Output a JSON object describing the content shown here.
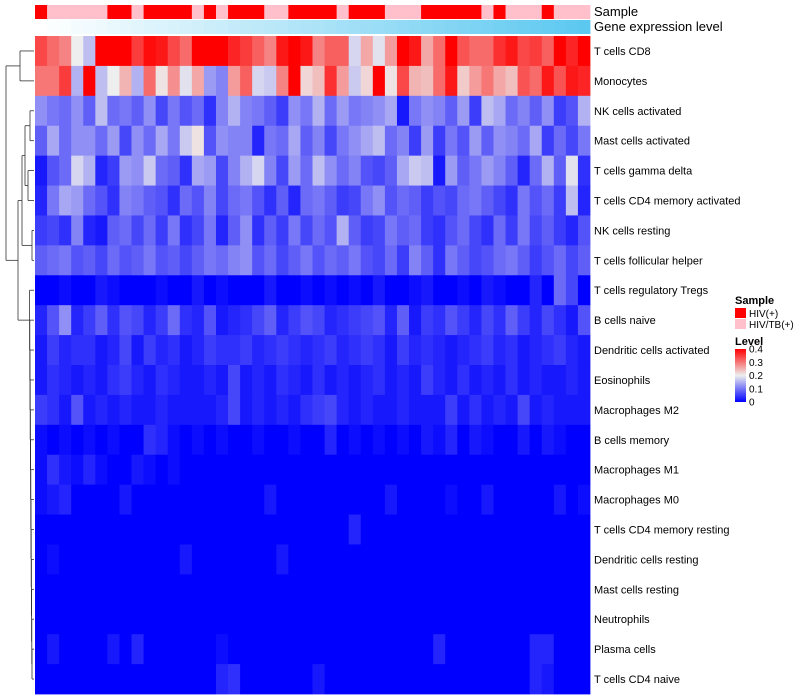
{
  "chart_data": {
    "type": "heatmap",
    "title": "",
    "annotation_tracks": [
      {
        "label": "Sample"
      },
      {
        "label": "Gene expression level"
      }
    ],
    "rows": [
      "T cells CD8",
      "Monocytes",
      "NK cells activated",
      "Mast cells activated",
      "T cells gamma delta",
      "T cells CD4 memory activated",
      "NK cells resting",
      "T cells follicular helper",
      "T cells regulatory  Tregs",
      "B cells naive",
      "Dendritic cells activated",
      "Eosinophils",
      "Macrophages M2",
      "B cells memory",
      "Macrophages M1",
      "Macrophages M0",
      "T cells CD4 memory resting",
      "Dendritic cells resting",
      "Mast cells resting",
      "Neutrophils",
      "Plasma cells",
      "T cells CD4 naive"
    ],
    "n_columns": 46,
    "sample_groups": [
      "HIV(+)",
      "HIV/TB(+)"
    ],
    "sample_colors": {
      "HIV(+)": "#ff0000",
      "HIV/TB(+)": "#ffc0cb"
    },
    "sample_assignment": [
      0,
      1,
      1,
      1,
      1,
      1,
      0,
      0,
      1,
      0,
      0,
      0,
      0,
      1,
      0,
      1,
      0,
      0,
      0,
      1,
      1,
      0,
      0,
      0,
      0,
      1,
      0,
      0,
      0,
      1,
      1,
      1,
      0,
      0,
      0,
      0,
      0,
      1,
      0,
      1,
      1,
      1,
      0,
      1,
      1,
      1
    ],
    "expression_colors": [
      "#ffffff",
      "#5cc8f0"
    ],
    "legend": {
      "sample_title": "Sample",
      "level_title": "Level",
      "ticks": [
        0.4,
        0.3,
        0.2,
        0.1,
        0
      ],
      "tick_labels": [
        "0.4",
        "0.3",
        "0.2",
        "0.1",
        "0"
      ],
      "position": "right"
    },
    "color_scale": {
      "min": 0,
      "mid": 0.2,
      "max": 0.4,
      "low": "#0000ff",
      "midcolor": "#eeeeee",
      "high": "#ff0000"
    },
    "values": [
      [
        0.34,
        0.31,
        0.29,
        0.2,
        0.16,
        0.4,
        0.4,
        0.4,
        0.35,
        0.39,
        0.38,
        0.34,
        0.31,
        0.4,
        0.4,
        0.4,
        0.37,
        0.35,
        0.32,
        0.29,
        0.38,
        0.4,
        0.38,
        0.29,
        0.32,
        0.32,
        0.18,
        0.26,
        0.19,
        0.27,
        0.4,
        0.38,
        0.26,
        0.31,
        0.4,
        0.33,
        0.31,
        0.31,
        0.36,
        0.38,
        0.34,
        0.35,
        0.32,
        0.4,
        0.37,
        0.4
      ],
      [
        0.3,
        0.3,
        0.35,
        0.15,
        0.4,
        0.16,
        0.2,
        0.25,
        0.15,
        0.31,
        0.21,
        0.28,
        0.19,
        0.26,
        0.13,
        0.11,
        0.27,
        0.32,
        0.18,
        0.17,
        0.29,
        0.4,
        0.22,
        0.24,
        0.36,
        0.27,
        0.17,
        0.22,
        0.4,
        0.21,
        0.34,
        0.25,
        0.24,
        0.31,
        0.38,
        0.23,
        0.27,
        0.3,
        0.26,
        0.24,
        0.33,
        0.31,
        0.38,
        0.33,
        0.38,
        0.37
      ],
      [
        0.12,
        0.1,
        0.09,
        0.12,
        0.08,
        0.16,
        0.09,
        0.1,
        0.08,
        0.12,
        0.06,
        0.1,
        0.07,
        0.09,
        0.04,
        0.11,
        0.15,
        0.11,
        0.1,
        0.08,
        0.05,
        0.12,
        0.1,
        0.15,
        0.09,
        0.13,
        0.1,
        0.11,
        0.12,
        0.14,
        0.02,
        0.1,
        0.12,
        0.11,
        0.08,
        0.13,
        0.05,
        0.16,
        0.14,
        0.09,
        0.11,
        0.08,
        0.12,
        0.05,
        0.07,
        0.15
      ],
      [
        0.08,
        0.14,
        0.09,
        0.12,
        0.12,
        0.09,
        0.13,
        0.06,
        0.12,
        0.09,
        0.14,
        0.1,
        0.17,
        0.21,
        0.07,
        0.12,
        0.11,
        0.11,
        0.03,
        0.1,
        0.09,
        0.14,
        0.08,
        0.11,
        0.06,
        0.1,
        0.12,
        0.14,
        0.16,
        0.09,
        0.11,
        0.05,
        0.13,
        0.05,
        0.1,
        0.07,
        0.13,
        0.08,
        0.12,
        0.11,
        0.09,
        0.14,
        0.05,
        0.09,
        0.06,
        0.1
      ],
      [
        0.02,
        0.07,
        0.09,
        0.18,
        0.15,
        0.03,
        0.05,
        0.13,
        0.12,
        0.17,
        0.09,
        0.08,
        0.04,
        0.14,
        0.13,
        0.06,
        0.11,
        0.15,
        0.18,
        0.11,
        0.06,
        0.13,
        0.09,
        0.16,
        0.12,
        0.09,
        0.11,
        0.07,
        0.06,
        0.08,
        0.14,
        0.17,
        0.16,
        0.02,
        0.13,
        0.08,
        0.1,
        0.13,
        0.11,
        0.08,
        0.03,
        0.09,
        0.15,
        0.08,
        0.19,
        0.04
      ],
      [
        0.03,
        0.1,
        0.14,
        0.13,
        0.09,
        0.07,
        0.04,
        0.11,
        0.1,
        0.08,
        0.07,
        0.04,
        0.09,
        0.07,
        0.11,
        0.06,
        0.09,
        0.1,
        0.07,
        0.04,
        0.08,
        0.03,
        0.09,
        0.1,
        0.08,
        0.05,
        0.06,
        0.1,
        0.12,
        0.07,
        0.09,
        0.08,
        0.05,
        0.07,
        0.06,
        0.09,
        0.1,
        0.08,
        0.06,
        0.04,
        0.1,
        0.07,
        0.09,
        0.05,
        0.16,
        0.03
      ],
      [
        0.05,
        0.06,
        0.04,
        0.11,
        0.03,
        0.02,
        0.08,
        0.09,
        0.06,
        0.09,
        0.05,
        0.1,
        0.04,
        0.06,
        0.1,
        0.03,
        0.08,
        0.12,
        0.04,
        0.08,
        0.05,
        0.1,
        0.06,
        0.09,
        0.07,
        0.15,
        0.08,
        0.05,
        0.06,
        0.1,
        0.08,
        0.09,
        0.05,
        0.04,
        0.07,
        0.09,
        0.06,
        0.04,
        0.09,
        0.05,
        0.1,
        0.06,
        0.08,
        0.05,
        0.03,
        0.07
      ],
      [
        0.08,
        0.09,
        0.1,
        0.07,
        0.08,
        0.06,
        0.09,
        0.07,
        0.08,
        0.1,
        0.07,
        0.08,
        0.06,
        0.08,
        0.1,
        0.09,
        0.11,
        0.12,
        0.07,
        0.09,
        0.06,
        0.08,
        0.1,
        0.07,
        0.09,
        0.08,
        0.1,
        0.07,
        0.06,
        0.09,
        0.05,
        0.11,
        0.08,
        0.04,
        0.1,
        0.08,
        0.06,
        0.07,
        0.09,
        0.1,
        0.08,
        0.05,
        0.07,
        0.09,
        0.06,
        0.08
      ],
      [
        0.0,
        0.0,
        0.01,
        0.0,
        0.0,
        0.02,
        0.01,
        0.0,
        0.0,
        0.0,
        0.01,
        0.0,
        0.0,
        0.02,
        0.0,
        0.01,
        0.0,
        0.0,
        0.0,
        0.02,
        0.0,
        0.0,
        0.01,
        0.0,
        0.01,
        0.0,
        0.01,
        0.0,
        0.02,
        0.0,
        0.0,
        0.01,
        0.02,
        0.0,
        0.0,
        0.01,
        0.0,
        0.02,
        0.01,
        0.0,
        0.0,
        0.03,
        0.0,
        0.09,
        0.06,
        0.0
      ],
      [
        0.03,
        0.07,
        0.12,
        0.03,
        0.05,
        0.08,
        0.04,
        0.07,
        0.06,
        0.03,
        0.05,
        0.09,
        0.04,
        0.03,
        0.07,
        0.02,
        0.03,
        0.04,
        0.06,
        0.08,
        0.03,
        0.05,
        0.07,
        0.06,
        0.03,
        0.04,
        0.05,
        0.06,
        0.07,
        0.03,
        0.08,
        0.02,
        0.05,
        0.04,
        0.07,
        0.05,
        0.03,
        0.06,
        0.04,
        0.08,
        0.05,
        0.03,
        0.06,
        0.04,
        0.02,
        0.07
      ],
      [
        0.02,
        0.05,
        0.03,
        0.04,
        0.04,
        0.02,
        0.03,
        0.06,
        0.02,
        0.05,
        0.03,
        0.04,
        0.02,
        0.03,
        0.05,
        0.04,
        0.04,
        0.05,
        0.03,
        0.04,
        0.05,
        0.04,
        0.03,
        0.04,
        0.05,
        0.03,
        0.04,
        0.05,
        0.04,
        0.02,
        0.05,
        0.03,
        0.04,
        0.03,
        0.02,
        0.03,
        0.04,
        0.05,
        0.03,
        0.04,
        0.02,
        0.03,
        0.04,
        0.05,
        0.03,
        0.02
      ],
      [
        0.02,
        0.04,
        0.03,
        0.02,
        0.03,
        0.02,
        0.04,
        0.05,
        0.03,
        0.02,
        0.04,
        0.03,
        0.02,
        0.02,
        0.03,
        0.02,
        0.06,
        0.02,
        0.03,
        0.02,
        0.04,
        0.03,
        0.02,
        0.04,
        0.02,
        0.03,
        0.02,
        0.03,
        0.04,
        0.02,
        0.03,
        0.02,
        0.05,
        0.03,
        0.02,
        0.04,
        0.02,
        0.03,
        0.02,
        0.04,
        0.02,
        0.03,
        0.02,
        0.02,
        0.03,
        0.02
      ],
      [
        0.05,
        0.04,
        0.02,
        0.07,
        0.02,
        0.03,
        0.02,
        0.03,
        0.02,
        0.02,
        0.03,
        0.02,
        0.02,
        0.02,
        0.02,
        0.03,
        0.06,
        0.02,
        0.03,
        0.02,
        0.03,
        0.02,
        0.04,
        0.05,
        0.06,
        0.03,
        0.02,
        0.03,
        0.02,
        0.02,
        0.03,
        0.02,
        0.02,
        0.02,
        0.05,
        0.02,
        0.04,
        0.02,
        0.03,
        0.02,
        0.06,
        0.02,
        0.03,
        0.02,
        0.02,
        0.02
      ],
      [
        0.01,
        0.0,
        0.01,
        0.0,
        0.01,
        0.0,
        0.01,
        0.0,
        0.0,
        0.04,
        0.03,
        0.01,
        0.0,
        0.01,
        0.0,
        0.01,
        0.0,
        0.0,
        0.01,
        0.0,
        0.0,
        0.01,
        0.0,
        0.0,
        0.03,
        0.0,
        0.01,
        0.0,
        0.01,
        0.0,
        0.01,
        0.0,
        0.02,
        0.01,
        0.03,
        0.0,
        0.02,
        0.01,
        0.0,
        0.0,
        0.02,
        0.0,
        0.02,
        0.01,
        0.0,
        0.0
      ],
      [
        0.01,
        0.04,
        0.02,
        0.01,
        0.03,
        0.01,
        0.0,
        0.0,
        0.02,
        0.01,
        0.0,
        0.01,
        0.0,
        0.0,
        0.0,
        0.0,
        0.0,
        0.0,
        0.0,
        0.0,
        0.0,
        0.0,
        0.0,
        0.0,
        0.0,
        0.0,
        0.0,
        0.0,
        0.0,
        0.0,
        0.0,
        0.0,
        0.0,
        0.0,
        0.0,
        0.0,
        0.0,
        0.0,
        0.0,
        0.0,
        0.0,
        0.0,
        0.0,
        0.0,
        0.0,
        0.0
      ],
      [
        0.01,
        0.02,
        0.03,
        0.0,
        0.0,
        0.0,
        0.0,
        0.02,
        0.0,
        0.0,
        0.0,
        0.0,
        0.0,
        0.0,
        0.0,
        0.0,
        0.0,
        0.0,
        0.0,
        0.02,
        0.0,
        0.0,
        0.0,
        0.0,
        0.0,
        0.0,
        0.0,
        0.0,
        0.0,
        0.02,
        0.0,
        0.0,
        0.0,
        0.0,
        0.01,
        0.0,
        0.0,
        0.02,
        0.0,
        0.0,
        0.0,
        0.0,
        0.0,
        0.02,
        0.0,
        0.01
      ],
      [
        0.0,
        0.0,
        0.0,
        0.0,
        0.0,
        0.0,
        0.0,
        0.0,
        0.0,
        0.0,
        0.0,
        0.0,
        0.0,
        0.0,
        0.0,
        0.0,
        0.0,
        0.0,
        0.0,
        0.0,
        0.0,
        0.0,
        0.0,
        0.0,
        0.0,
        0.0,
        0.03,
        0.0,
        0.0,
        0.0,
        0.0,
        0.0,
        0.0,
        0.0,
        0.0,
        0.0,
        0.0,
        0.0,
        0.0,
        0.0,
        0.0,
        0.0,
        0.0,
        0.0,
        0.0,
        0.0
      ],
      [
        0.0,
        0.01,
        0.0,
        0.0,
        0.0,
        0.0,
        0.0,
        0.0,
        0.0,
        0.0,
        0.0,
        0.0,
        0.02,
        0.0,
        0.0,
        0.0,
        0.0,
        0.0,
        0.0,
        0.0,
        0.02,
        0.0,
        0.0,
        0.0,
        0.0,
        0.0,
        0.0,
        0.0,
        0.0,
        0.0,
        0.0,
        0.0,
        0.0,
        0.0,
        0.0,
        0.0,
        0.0,
        0.0,
        0.0,
        0.0,
        0.0,
        0.0,
        0.0,
        0.0,
        0.0,
        0.0
      ],
      [
        0.0,
        0.0,
        0.0,
        0.0,
        0.0,
        0.0,
        0.0,
        0.0,
        0.0,
        0.0,
        0.0,
        0.0,
        0.0,
        0.0,
        0.0,
        0.0,
        0.0,
        0.0,
        0.0,
        0.0,
        0.0,
        0.0,
        0.0,
        0.0,
        0.0,
        0.0,
        0.0,
        0.0,
        0.0,
        0.0,
        0.0,
        0.0,
        0.0,
        0.0,
        0.0,
        0.0,
        0.0,
        0.0,
        0.0,
        0.0,
        0.0,
        0.0,
        0.0,
        0.0,
        0.0,
        0.0
      ],
      [
        0.0,
        0.0,
        0.0,
        0.0,
        0.0,
        0.0,
        0.0,
        0.0,
        0.0,
        0.0,
        0.0,
        0.0,
        0.0,
        0.0,
        0.0,
        0.0,
        0.0,
        0.0,
        0.0,
        0.0,
        0.0,
        0.0,
        0.0,
        0.0,
        0.0,
        0.0,
        0.0,
        0.0,
        0.0,
        0.0,
        0.0,
        0.0,
        0.0,
        0.0,
        0.0,
        0.0,
        0.0,
        0.0,
        0.0,
        0.0,
        0.0,
        0.0,
        0.0,
        0.0,
        0.0,
        0.0
      ],
      [
        0.0,
        0.02,
        0.0,
        0.0,
        0.0,
        0.0,
        0.02,
        0.0,
        0.03,
        0.0,
        0.0,
        0.0,
        0.0,
        0.0,
        0.0,
        0.01,
        0.0,
        0.0,
        0.0,
        0.0,
        0.0,
        0.0,
        0.0,
        0.0,
        0.0,
        0.0,
        0.0,
        0.0,
        0.0,
        0.0,
        0.0,
        0.0,
        0.0,
        0.03,
        0.0,
        0.0,
        0.0,
        0.0,
        0.0,
        0.0,
        0.0,
        0.03,
        0.03,
        0.0,
        0.0,
        0.0
      ],
      [
        0.0,
        0.0,
        0.0,
        0.0,
        0.0,
        0.0,
        0.0,
        0.0,
        0.0,
        0.0,
        0.0,
        0.0,
        0.0,
        0.0,
        0.0,
        0.03,
        0.04,
        0.0,
        0.0,
        0.0,
        0.0,
        0.0,
        0.0,
        0.02,
        0.0,
        0.0,
        0.0,
        0.0,
        0.0,
        0.0,
        0.0,
        0.0,
        0.0,
        0.0,
        0.0,
        0.0,
        0.0,
        0.0,
        0.0,
        0.0,
        0.0,
        0.03,
        0.02,
        0.0,
        0.0,
        0.0
      ]
    ]
  }
}
